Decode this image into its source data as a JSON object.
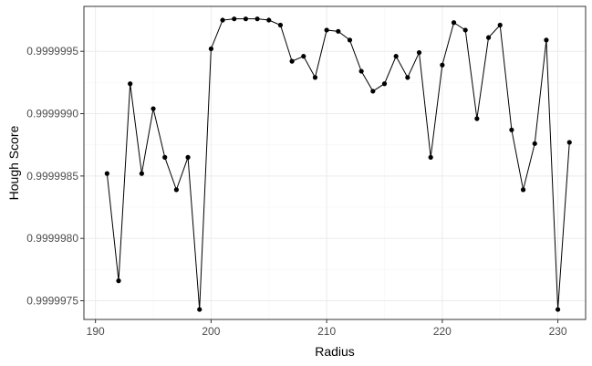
{
  "chart_data": {
    "type": "line",
    "title": "",
    "xlabel": "Radius",
    "ylabel": "Hough Score",
    "xlim": [
      189,
      232.4
    ],
    "ylim": [
      0.99999735,
      0.99999986
    ],
    "x_ticks": [
      190,
      200,
      210,
      220,
      230
    ],
    "x_tick_labels": [
      "190",
      "200",
      "210",
      "220",
      "230"
    ],
    "y_ticks": [
      0.9999975,
      0.999998,
      0.9999985,
      0.999999,
      0.9999995
    ],
    "y_tick_labels": [
      "0.9999975",
      "0.9999980",
      "0.9999985",
      "0.9999990",
      "0.9999995"
    ],
    "grid": true,
    "markers": true,
    "line_color": "#000000",
    "series": [
      {
        "x": [
          191,
          192,
          193,
          194,
          195,
          196,
          197,
          198,
          199,
          200,
          201,
          202,
          203,
          204,
          205,
          206,
          207,
          208,
          209,
          210,
          211,
          212,
          213,
          214,
          215,
          216,
          217,
          218,
          219,
          220,
          221,
          222,
          223,
          224,
          225,
          226,
          227,
          228,
          229,
          230,
          231
        ],
        "values": [
          0.99999852,
          0.99999766,
          0.99999924,
          0.99999852,
          0.99999904,
          0.99999865,
          0.99999839,
          0.99999865,
          0.99999743,
          0.99999952,
          0.99999975,
          0.99999976,
          0.99999976,
          0.99999976,
          0.99999975,
          0.99999971,
          0.99999942,
          0.99999946,
          0.99999929,
          0.99999967,
          0.99999966,
          0.99999959,
          0.99999934,
          0.99999918,
          0.99999924,
          0.99999946,
          0.99999929,
          0.99999949,
          0.99999865,
          0.99999939,
          0.99999973,
          0.99999967,
          0.99999896,
          0.99999961,
          0.99999971,
          0.99999887,
          0.99999839,
          0.99999876,
          0.99999959,
          0.99999743,
          0.99999877
        ]
      }
    ]
  }
}
